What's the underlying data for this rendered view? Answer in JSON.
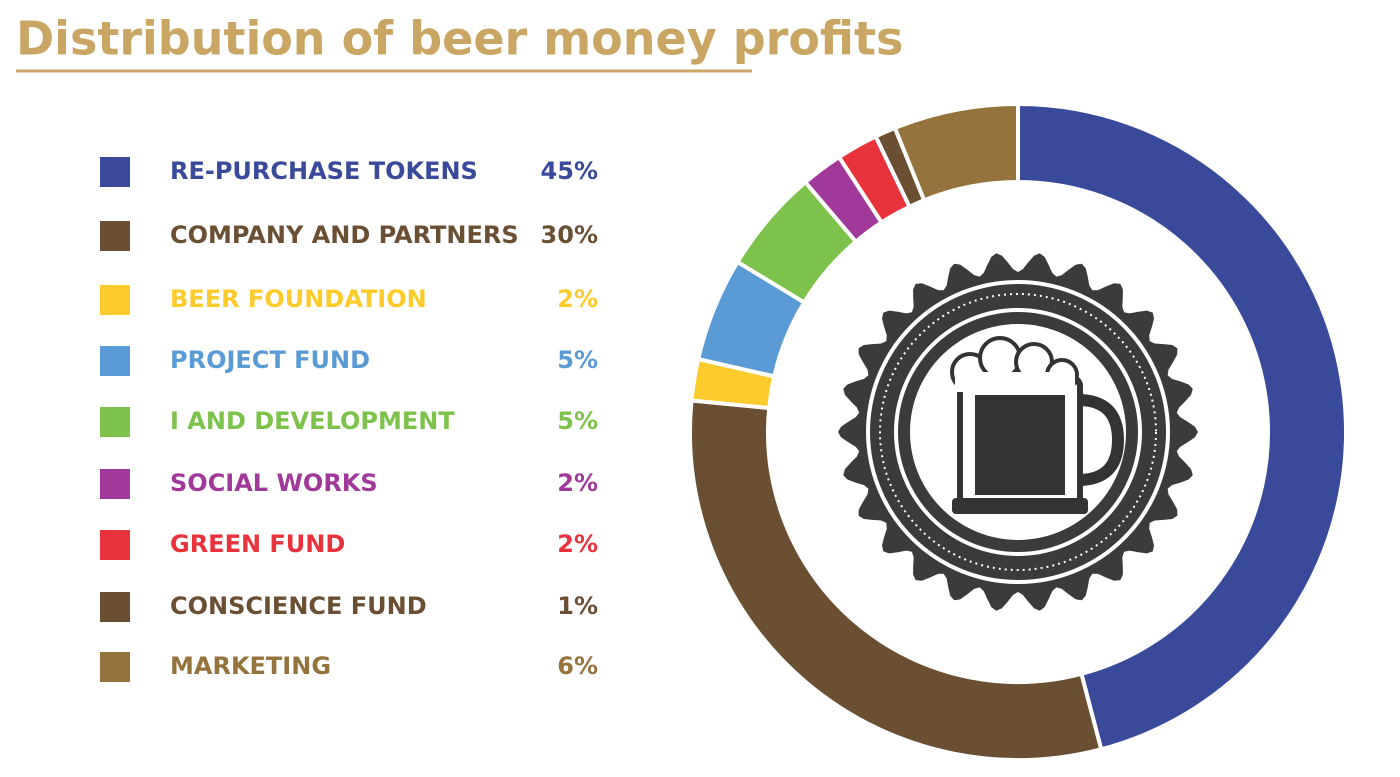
{
  "chart_data": {
    "type": "pie",
    "donut": true,
    "title": "Distribution of beer money profits",
    "categories": [
      "RE-PURCHASE TOKENS",
      "COMPANY AND PARTNERS",
      "BEER FOUNDATION",
      "PROJECT FUND",
      "I AND DEVELOPMENT",
      "SOCIAL WORKS",
      "GREEN FUND",
      "CONSCIENCE FUND",
      "MARKETING"
    ],
    "values": [
      45,
      30,
      2,
      5,
      5,
      2,
      2,
      1,
      6
    ],
    "value_labels": [
      "45%",
      "30%",
      "2%",
      "5%",
      "5%",
      "2%",
      "2%",
      "1%",
      "6%"
    ],
    "colors": [
      "#3a4a9a",
      "#6b4f33",
      "#fdcb2b",
      "#5b9bd5",
      "#7dc24b",
      "#a0399a",
      "#e8323c",
      "#6b4f33",
      "#94733c"
    ]
  }
}
